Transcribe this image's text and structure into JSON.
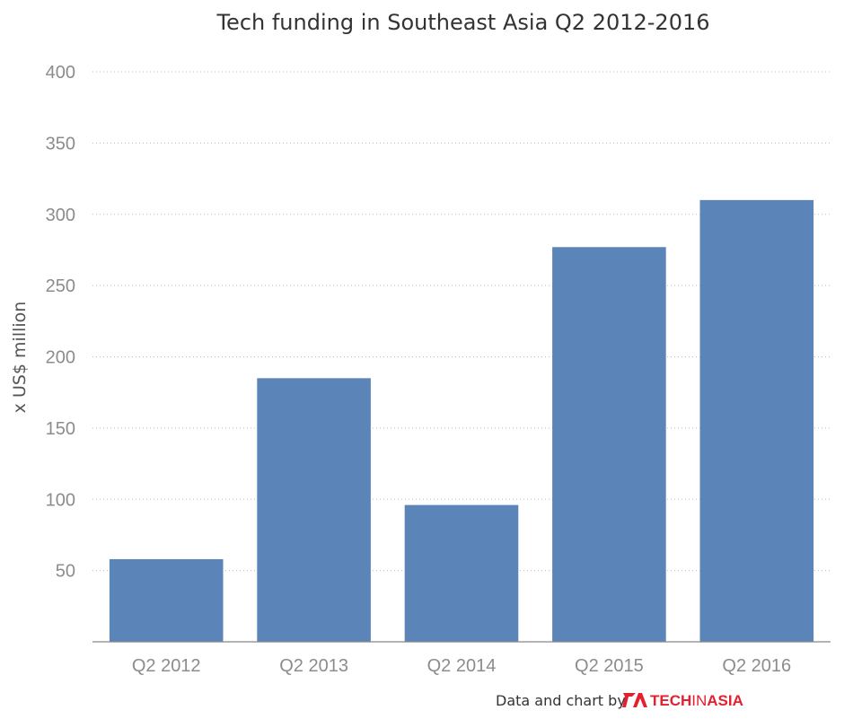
{
  "chart_data": {
    "type": "bar",
    "title": "Tech funding in Southeast Asia Q2 2012-2016",
    "xlabel": "",
    "ylabel": "x US$ million",
    "categories": [
      "Q2 2012",
      "Q2 2013",
      "Q2 2014",
      "Q2 2015",
      "Q2 2016"
    ],
    "values": [
      58,
      185,
      96,
      277,
      310
    ],
    "ylim": [
      0,
      400
    ],
    "yticks": [
      50,
      100,
      150,
      200,
      250,
      300,
      350,
      400
    ],
    "grid": true,
    "bar_color": "#5b84b8"
  },
  "credit": {
    "text": "Data and chart by",
    "brand_bold_1": "TECH",
    "brand_thin": "IN",
    "brand_bold_2": "ASIA",
    "brand_color": "#e5202e"
  }
}
